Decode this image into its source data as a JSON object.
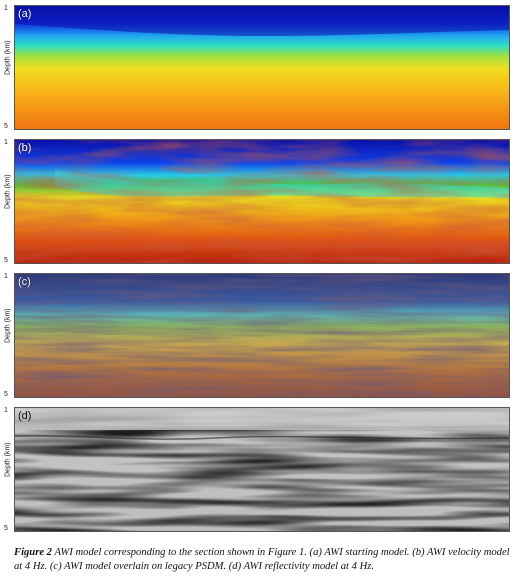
{
  "panels": [
    {
      "label": "(a)",
      "ylabel": "Depth (km)",
      "tick_top": "1",
      "tick_bottom": "5",
      "style": "smooth"
    },
    {
      "label": "(b)",
      "ylabel": "Depth (km)",
      "tick_top": "1",
      "tick_bottom": "5",
      "style": "velocity"
    },
    {
      "label": "(c)",
      "ylabel": "Depth (km)",
      "tick_top": "1",
      "tick_bottom": "5",
      "style": "overlay"
    },
    {
      "label": "(d)",
      "ylabel": "Depth (km)",
      "tick_top": "1",
      "tick_bottom": "5",
      "style": "reflectivity"
    }
  ],
  "caption": {
    "figure": "Figure 2",
    "text": "AWI model corresponding to the section shown in Figure 1.  (a) AWI starting model. (b) AWI velocity model at 4 Hz.  (c) AWI model overlain on legacy PSDM.  (d) AWI reflectivity model at 4 Hz."
  },
  "colors": {
    "water": "#1a1ab8",
    "cyan": "#22d0e0",
    "green": "#44c040",
    "yellow": "#f0e020",
    "orange": "#f07a10",
    "red": "#c02010"
  }
}
